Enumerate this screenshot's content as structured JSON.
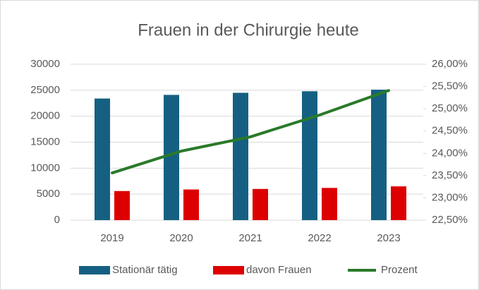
{
  "chart_data": {
    "type": "bar",
    "title": "Frauen in der Chirurgie heute",
    "categories": [
      "2019",
      "2020",
      "2021",
      "2022",
      "2023"
    ],
    "series": [
      {
        "name": "Stationär tätig",
        "color": "#156082",
        "values": [
          23400,
          24100,
          24500,
          24800,
          25100
        ]
      },
      {
        "name": "davon Frauen",
        "color": "#dd0000",
        "values": [
          5600,
          5900,
          6000,
          6200,
          6500
        ]
      },
      {
        "name": "Prozent",
        "color": "#2a7a2a",
        "type": "line",
        "axis": "y2",
        "values": [
          23.56,
          24.05,
          24.37,
          24.86,
          25.41
        ]
      }
    ],
    "ylim": [
      0,
      30000
    ],
    "yticks": [
      0,
      5000,
      10000,
      15000,
      20000,
      25000,
      30000
    ],
    "y2lim": [
      22.5,
      26
    ],
    "y2ticks": [
      {
        "value": 22.5,
        "label": "22,50%"
      },
      {
        "value": 23,
        "label": "23,00%"
      },
      {
        "value": 23.5,
        "label": "23,50%"
      },
      {
        "value": 24,
        "label": "24,00%"
      },
      {
        "value": 24.5,
        "label": "24,50%"
      },
      {
        "value": 25,
        "label": "25,00%"
      },
      {
        "value": 25.5,
        "label": "25,50%"
      },
      {
        "value": 26,
        "label": "26,00%"
      }
    ],
    "grid": true
  }
}
